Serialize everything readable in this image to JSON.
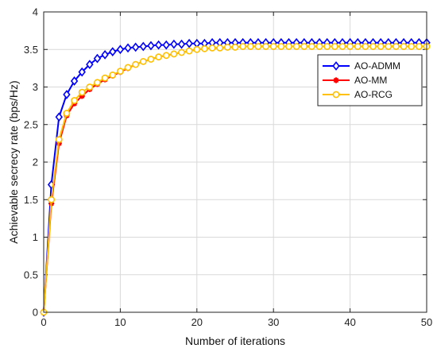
{
  "chart_data": {
    "type": "line",
    "title": "",
    "xlabel": "Number of iterations",
    "ylabel": "Achievable  secrecy rate (bps/Hz)",
    "xlim": [
      0,
      50
    ],
    "ylim": [
      0,
      4
    ],
    "xticks": [
      0,
      10,
      20,
      30,
      40,
      50
    ],
    "yticks": [
      0,
      0.5,
      1,
      1.5,
      2,
      2.5,
      3,
      3.5,
      4
    ],
    "xtick_labels": [
      "0",
      "10",
      "20",
      "30",
      "40",
      "50"
    ],
    "ytick_labels": [
      "0",
      "0.5",
      "1",
      "1.5",
      "2",
      "2.5",
      "3",
      "3.5",
      "4"
    ],
    "grid": true,
    "legend_position": "top-right",
    "x": [
      0,
      1,
      2,
      3,
      4,
      5,
      6,
      7,
      8,
      9,
      10,
      11,
      12,
      13,
      14,
      15,
      16,
      17,
      18,
      19,
      20,
      21,
      22,
      23,
      24,
      25,
      26,
      27,
      28,
      29,
      30,
      31,
      32,
      33,
      34,
      35,
      36,
      37,
      38,
      39,
      40,
      41,
      42,
      43,
      44,
      45,
      46,
      47,
      48,
      49,
      50
    ],
    "series": [
      {
        "name": "AO-ADMM",
        "color": "#0000ff",
        "marker": "diamond",
        "values": [
          0,
          1.7,
          2.6,
          2.9,
          3.08,
          3.2,
          3.3,
          3.38,
          3.43,
          3.47,
          3.5,
          3.52,
          3.53,
          3.54,
          3.55,
          3.56,
          3.56,
          3.57,
          3.57,
          3.58,
          3.58,
          3.58,
          3.59,
          3.59,
          3.59,
          3.59,
          3.59,
          3.59,
          3.59,
          3.59,
          3.59,
          3.59,
          3.59,
          3.59,
          3.59,
          3.59,
          3.59,
          3.59,
          3.59,
          3.59,
          3.59,
          3.59,
          3.59,
          3.59,
          3.59,
          3.59,
          3.59,
          3.59,
          3.59,
          3.59,
          3.59
        ]
      },
      {
        "name": "AO-MM",
        "color": "#ff0000",
        "marker": "asterisk",
        "values": [
          0,
          1.45,
          2.25,
          2.62,
          2.78,
          2.88,
          2.97,
          3.04,
          3.1,
          3.15,
          3.2,
          3.25,
          3.3,
          3.34,
          3.37,
          3.4,
          3.42,
          3.44,
          3.46,
          3.48,
          3.5,
          3.51,
          3.52,
          3.52,
          3.53,
          3.53,
          3.54,
          3.54,
          3.54,
          3.54,
          3.54,
          3.54,
          3.54,
          3.54,
          3.54,
          3.54,
          3.54,
          3.54,
          3.54,
          3.54,
          3.54,
          3.54,
          3.54,
          3.54,
          3.54,
          3.54,
          3.54,
          3.54,
          3.54,
          3.54,
          3.54
        ]
      },
      {
        "name": "AO-RCG",
        "color": "#ffc000",
        "marker": "circle",
        "values": [
          0,
          1.5,
          2.3,
          2.65,
          2.82,
          2.93,
          3.0,
          3.06,
          3.12,
          3.16,
          3.21,
          3.26,
          3.3,
          3.34,
          3.37,
          3.4,
          3.42,
          3.44,
          3.46,
          3.48,
          3.5,
          3.51,
          3.52,
          3.52,
          3.53,
          3.53,
          3.54,
          3.54,
          3.54,
          3.54,
          3.54,
          3.54,
          3.54,
          3.54,
          3.54,
          3.54,
          3.54,
          3.54,
          3.54,
          3.54,
          3.54,
          3.54,
          3.54,
          3.54,
          3.54,
          3.54,
          3.54,
          3.54,
          3.54,
          3.54,
          3.54
        ]
      }
    ]
  }
}
